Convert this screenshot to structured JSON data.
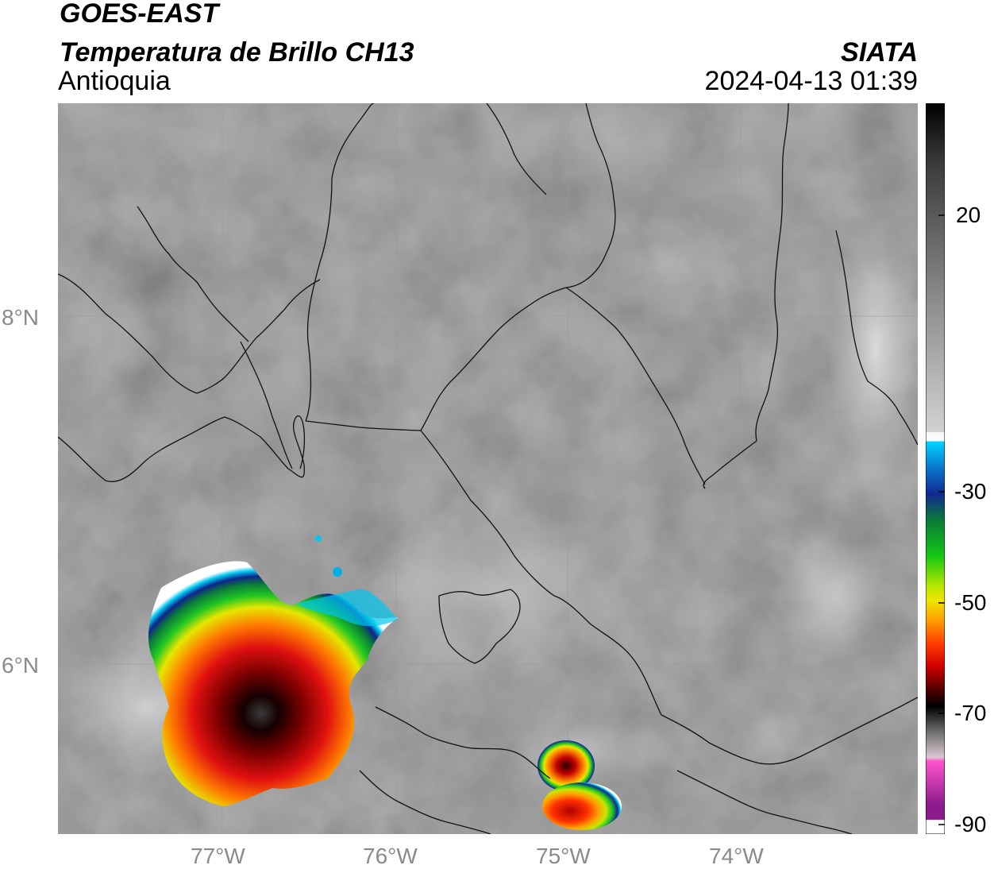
{
  "header": {
    "satellite": "GOES-EAST",
    "product": "Temperatura de Brillo CH13",
    "region": "Antioquia",
    "agency": "SIATA",
    "timestamp": "2024-04-13 01:39"
  },
  "map": {
    "lat_labels": [
      "8°N",
      "6°N"
    ],
    "lon_labels": [
      "77°W",
      "76°W",
      "75°W",
      "74°W"
    ],
    "extent": {
      "lon_min": -77.95,
      "lon_max": -73.0,
      "lat_min": 4.95,
      "lat_max": 9.17
    },
    "background": "grayscale infrared brightness temperature",
    "storm_cells": [
      {
        "center": [
          -77.0,
          5.55
        ],
        "min_temp_c": -75
      },
      {
        "center": [
          -75.0,
          5.2
        ],
        "min_temp_c": -70
      },
      {
        "center": [
          -75.0,
          4.97
        ],
        "min_temp_c": -65
      }
    ]
  },
  "colorbar": {
    "ticks": [
      "20",
      "-30",
      "-50",
      "-70",
      "-90"
    ],
    "tick_values": [
      20,
      -30,
      -50,
      -70,
      -90
    ],
    "range": [
      -90,
      40
    ],
    "colors": {
      "warm_gray": "#8a8a8a",
      "white": "#ffffff",
      "cyan": "#00d5ff",
      "blue": "#1432a0",
      "green": "#14c814",
      "yellow": "#f0f000",
      "orange": "#ff8c00",
      "red": "#e01010",
      "dark_red": "#5a0000",
      "black": "#000000",
      "pink": "#ff55cc",
      "purple": "#8c1c8c"
    }
  }
}
